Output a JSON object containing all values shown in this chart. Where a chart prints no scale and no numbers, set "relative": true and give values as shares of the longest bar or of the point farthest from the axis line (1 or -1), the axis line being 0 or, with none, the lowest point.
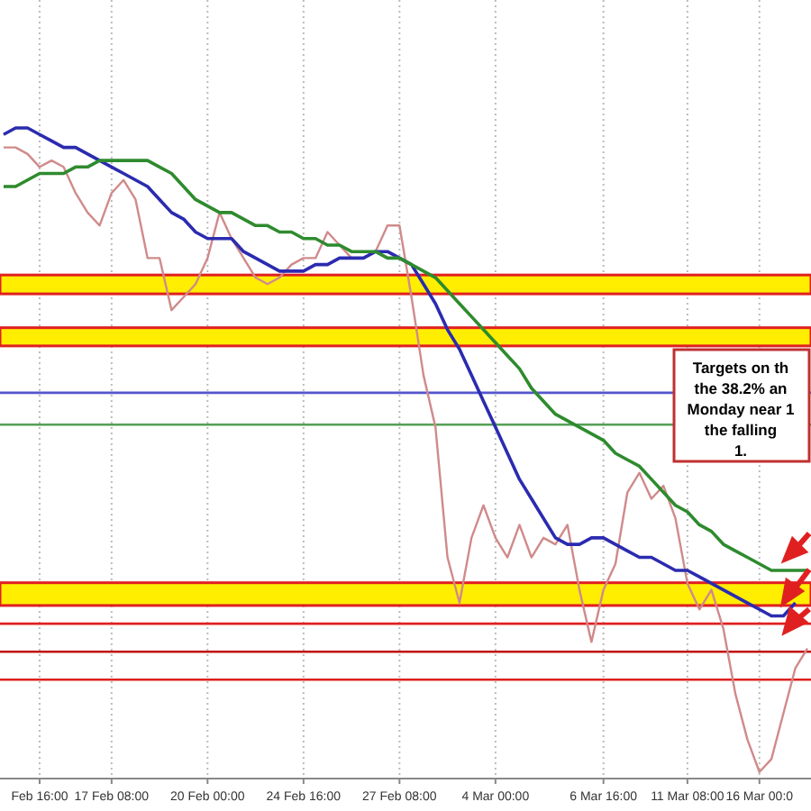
{
  "chart_data": {
    "type": "line",
    "relative": true,
    "grid": "x",
    "marker": "none",
    "categories": [
      null,
      null,
      null,
      "Feb 16:00",
      null,
      null,
      null,
      null,
      null,
      "17 Feb 08:00",
      null,
      null,
      null,
      null,
      null,
      null,
      null,
      "20 Feb 00:00",
      null,
      null,
      null,
      null,
      null,
      null,
      null,
      "24 Feb 16:00",
      null,
      null,
      null,
      null,
      null,
      null,
      null,
      "27 Feb 08:00",
      null,
      null,
      null,
      null,
      null,
      null,
      null,
      "4 Mar 00:00",
      null,
      null,
      null,
      null,
      null,
      null,
      null,
      null,
      "6 Mar 16:00",
      null,
      null,
      null,
      null,
      null,
      null,
      "11 Mar 08:00",
      null,
      null,
      null,
      null,
      null,
      "16 Mar 00:0",
      null,
      null,
      null,
      null
    ],
    "series": [
      {
        "color": "#d08a8a",
        "values": [
          0.97,
          0.97,
          0.96,
          0.94,
          0.95,
          0.94,
          0.9,
          0.87,
          0.85,
          0.9,
          0.92,
          0.89,
          0.8,
          0.8,
          0.72,
          0.74,
          0.76,
          0.8,
          0.87,
          0.83,
          0.8,
          0.77,
          0.76,
          0.77,
          0.79,
          0.8,
          0.8,
          0.84,
          0.82,
          0.8,
          0.8,
          0.81,
          0.85,
          0.85,
          0.74,
          0.62,
          0.54,
          0.34,
          0.27,
          0.37,
          0.42,
          0.37,
          0.34,
          0.39,
          0.34,
          0.37,
          0.36,
          0.39,
          0.29,
          0.21,
          0.29,
          0.33,
          0.44,
          0.47,
          0.43,
          0.45,
          0.4,
          0.3,
          0.26,
          0.29,
          0.23,
          0.13,
          0.06,
          0.01,
          0.03,
          0.1,
          0.17,
          0.2
        ]
      },
      {
        "color": "#2b2bb0",
        "values": [
          0.99,
          1.0,
          1.0,
          0.99,
          0.98,
          0.97,
          0.97,
          0.96,
          0.95,
          0.94,
          0.93,
          0.92,
          0.91,
          0.89,
          0.87,
          0.86,
          0.84,
          0.83,
          0.83,
          0.83,
          0.81,
          0.8,
          0.79,
          0.78,
          0.78,
          0.78,
          0.79,
          0.79,
          0.8,
          0.8,
          0.8,
          0.81,
          0.81,
          0.8,
          0.79,
          0.76,
          0.73,
          0.69,
          0.66,
          0.62,
          0.58,
          0.54,
          0.5,
          0.46,
          0.43,
          0.4,
          0.37,
          0.36,
          0.36,
          0.37,
          0.37,
          0.36,
          0.35,
          0.34,
          0.34,
          0.33,
          0.32,
          0.32,
          0.31,
          0.3,
          0.29,
          0.28,
          0.27,
          0.26,
          0.25,
          0.25,
          0.27,
          null
        ]
      },
      {
        "color": "#2e8b2e",
        "values": [
          0.91,
          0.91,
          0.92,
          0.93,
          0.93,
          0.93,
          0.94,
          0.94,
          0.95,
          0.95,
          0.95,
          0.95,
          0.95,
          0.94,
          0.93,
          0.91,
          0.89,
          0.88,
          0.87,
          0.87,
          0.86,
          0.85,
          0.85,
          0.84,
          0.84,
          0.83,
          0.83,
          0.82,
          0.82,
          0.81,
          0.81,
          0.81,
          0.8,
          0.8,
          0.79,
          0.78,
          0.77,
          0.75,
          0.73,
          0.71,
          0.69,
          0.67,
          0.65,
          0.63,
          0.6,
          0.58,
          0.56,
          0.55,
          0.54,
          0.53,
          0.52,
          0.5,
          0.49,
          0.48,
          0.46,
          0.44,
          0.42,
          0.41,
          0.39,
          0.38,
          0.36,
          0.35,
          0.34,
          0.33,
          0.32,
          0.32,
          0.32,
          0.32
        ]
      }
    ],
    "bands": [
      {
        "axis": "y",
        "from": 0.745,
        "to": 0.774,
        "color": "#ffee00"
      },
      {
        "axis": "y",
        "from": 0.665,
        "to": 0.693,
        "color": "#ffee00"
      },
      {
        "axis": "y",
        "from": 0.266,
        "to": 0.301,
        "color": "#ffee00"
      }
    ],
    "ref_lines": [
      {
        "axis": "y",
        "value": 0.593,
        "color": "#5555cc"
      },
      {
        "axis": "y",
        "value": 0.544,
        "color": "#55a055"
      },
      {
        "axis": "y",
        "value": 0.238,
        "color": "#e02020"
      },
      {
        "axis": "y",
        "value": 0.195,
        "color": "#c01010"
      },
      {
        "axis": "y",
        "value": 0.152,
        "color": "#e02020"
      }
    ],
    "annotations": [
      "Targets on th\nthe 38.2% an\nMonday near 1\nthe falling\n1."
    ]
  }
}
